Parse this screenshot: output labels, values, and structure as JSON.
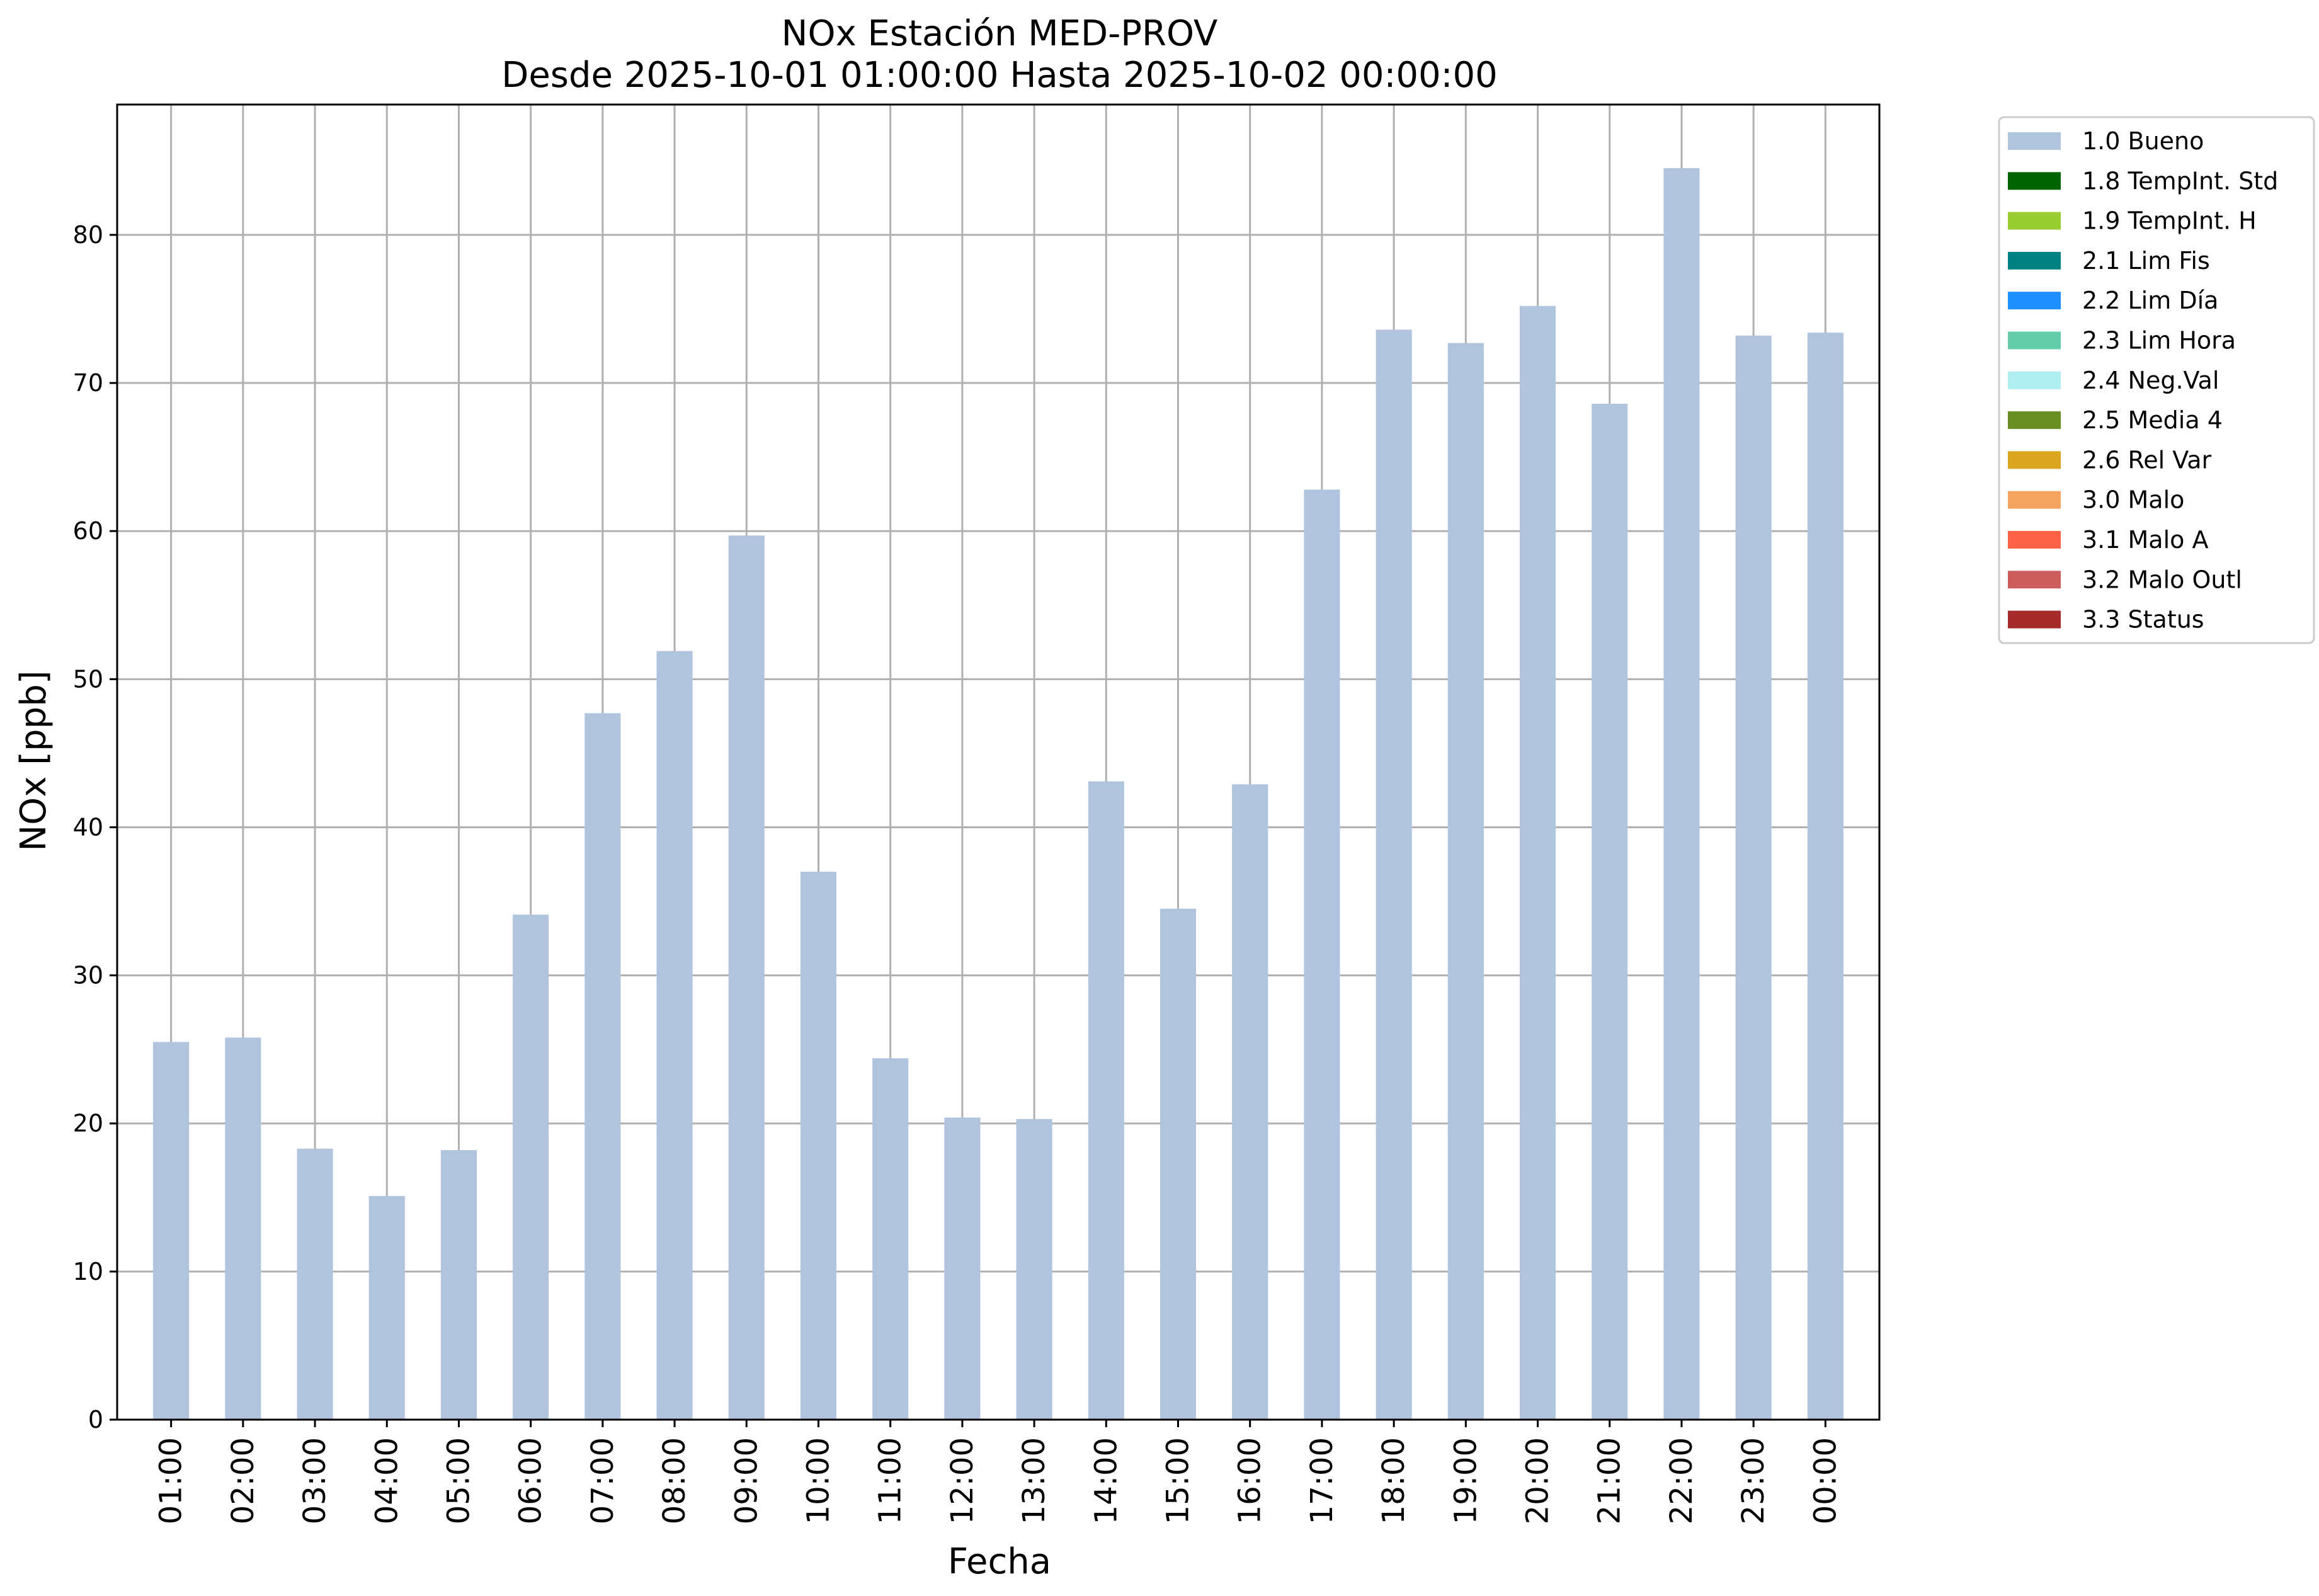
{
  "chart_data": {
    "type": "bar",
    "title": "NOx Estación MED-PROV",
    "subtitle": "Desde 2025-10-01 01:00:00 Hasta 2025-10-02 00:00:00",
    "xlabel": "Fecha",
    "ylabel": "NOx [ppb]",
    "ylim": [
      0,
      88.8
    ],
    "yticks": [
      0,
      10,
      20,
      30,
      40,
      50,
      60,
      70,
      80
    ],
    "grid": true,
    "legend_position": "outside-top-right",
    "categories": [
      "01:00",
      "02:00",
      "03:00",
      "04:00",
      "05:00",
      "06:00",
      "07:00",
      "08:00",
      "09:00",
      "10:00",
      "11:00",
      "12:00",
      "13:00",
      "14:00",
      "15:00",
      "16:00",
      "17:00",
      "18:00",
      "19:00",
      "20:00",
      "21:00",
      "22:00",
      "23:00",
      "00:00"
    ],
    "series": [
      {
        "name": "1.0 Bueno",
        "color": "#b0c4de",
        "values": [
          25.5,
          25.8,
          18.3,
          15.1,
          18.2,
          34.1,
          47.7,
          51.9,
          59.7,
          37.0,
          24.4,
          20.4,
          20.3,
          43.1,
          34.5,
          42.9,
          62.8,
          73.6,
          72.7,
          75.2,
          68.6,
          84.5,
          73.2,
          73.4
        ]
      }
    ],
    "legend": [
      {
        "label": "1.0 Bueno",
        "color": "#b0c4de"
      },
      {
        "label": "1.8 TempInt. Std",
        "color": "#006400"
      },
      {
        "label": "1.9 TempInt. H",
        "color": "#9acd32"
      },
      {
        "label": "2.1 Lim Fis",
        "color": "#008080"
      },
      {
        "label": "2.2 Lim Día",
        "color": "#1e90ff"
      },
      {
        "label": "2.3 Lim Hora",
        "color": "#66cdaa"
      },
      {
        "label": "2.4 Neg.Val",
        "color": "#afeeee"
      },
      {
        "label": "2.5 Media 4",
        "color": "#6b8e23"
      },
      {
        "label": "2.6 Rel Var",
        "color": "#daa520"
      },
      {
        "label": "3.0 Malo",
        "color": "#f4a460"
      },
      {
        "label": "3.1 Malo A",
        "color": "#ff6347"
      },
      {
        "label": "3.2 Malo Outl",
        "color": "#cd5c5c"
      },
      {
        "label": "3.3 Status",
        "color": "#a52a2a"
      }
    ]
  }
}
